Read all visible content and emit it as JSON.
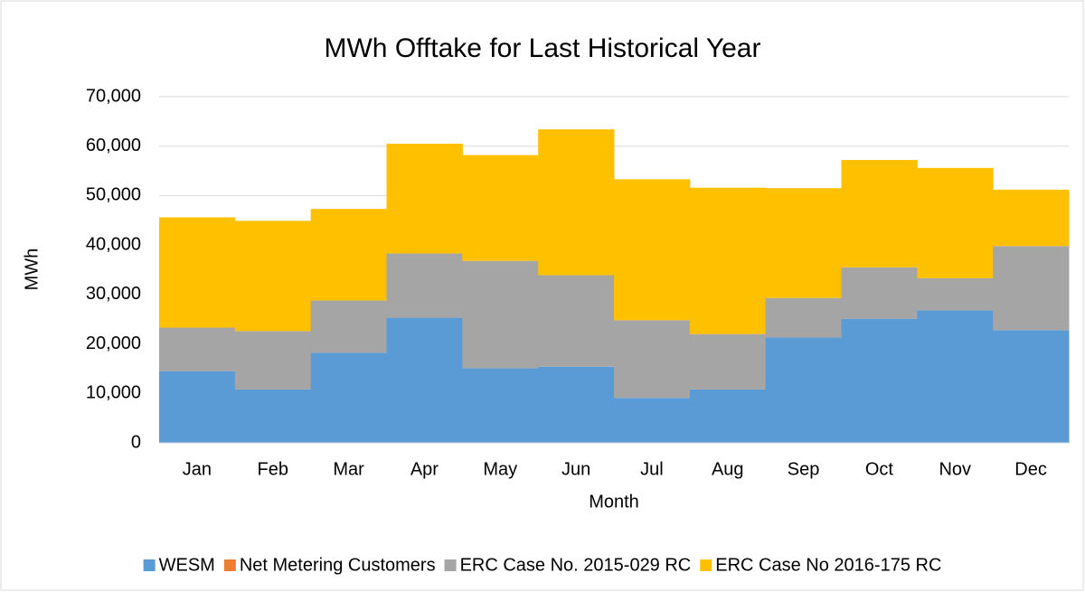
{
  "chart_data": {
    "type": "stacked_bar",
    "title": "MWh Offtake for Last Historical Year",
    "x_label": "Month",
    "y_label": "MWh",
    "categories": [
      "Jan",
      "Feb",
      "Mar",
      "Apr",
      "May",
      "Jun",
      "Jul",
      "Aug",
      "Sep",
      "Oct",
      "Nov",
      "Dec"
    ],
    "series": [
      {
        "name": "WESM",
        "color": "#5b9bd5",
        "values": [
          14500,
          10800,
          18200,
          25300,
          15100,
          15400,
          9100,
          10800,
          21300,
          25100,
          26800,
          22800
        ]
      },
      {
        "name": "Net Metering Customers",
        "color": "#ed7d31",
        "values": [
          0,
          0,
          0,
          0,
          0,
          0,
          0,
          0,
          0,
          0,
          0,
          0
        ]
      },
      {
        "name": "ERC Case No. 2015-029 RC",
        "color": "#a5a5a5",
        "values": [
          8800,
          11800,
          10600,
          13000,
          21700,
          18500,
          15700,
          11200,
          8000,
          10400,
          6500,
          17000
        ]
      },
      {
        "name": "ERC Case No 2016-175 RC",
        "color": "#ffc000",
        "values": [
          22300,
          22300,
          18500,
          22200,
          21400,
          29500,
          28500,
          29600,
          22200,
          21700,
          22300,
          11400
        ]
      }
    ],
    "ylim": [
      0,
      70000
    ],
    "yticks": [
      0,
      {
        "value": 10000,
        "label": "10,000"
      },
      {
        "value": 20000,
        "label": "20,000"
      },
      {
        "value": 30000,
        "label": "30,000"
      },
      {
        "value": 40000,
        "label": "40,000"
      },
      {
        "value": 50000,
        "label": "50,000"
      },
      {
        "value": 60000,
        "label": "60,000"
      },
      {
        "value": 70000,
        "label": "70,000"
      }
    ],
    "grid": true,
    "legend": "bottom"
  }
}
